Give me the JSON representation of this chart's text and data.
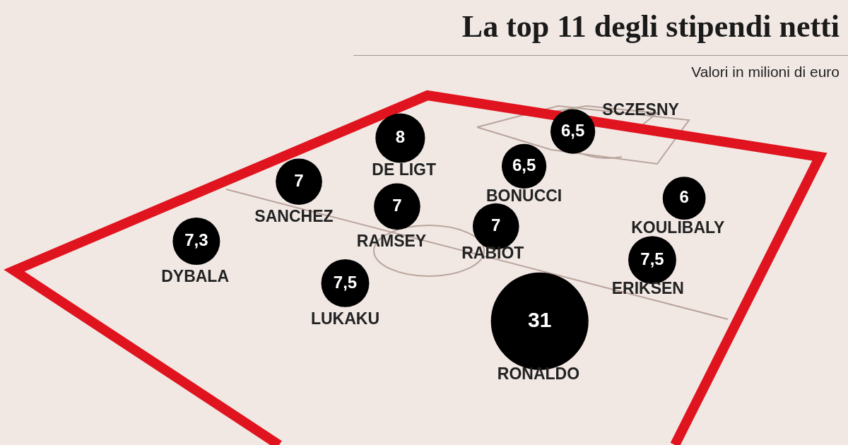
{
  "chart_data": {
    "type": "other",
    "title": "La top 11 degli stipendi netti",
    "subtitle": "Valori in milioni di euro",
    "categories": [
      "SCZESNY",
      "DE LIGT",
      "BONUCCI",
      "SANCHEZ",
      "KOULIBALY",
      "RAMSEY",
      "RABIOT",
      "DYBALA",
      "ERIKSEN",
      "LUKAKU",
      "RONALDO"
    ],
    "values": [
      6.5,
      8,
      6.5,
      7,
      6,
      7,
      7,
      7.3,
      7.5,
      7.5,
      31
    ],
    "value_labels": [
      "6,5",
      "8",
      "6,5",
      "7",
      "6",
      "7",
      "7",
      "7,3",
      "7,5",
      "7,5",
      "31"
    ],
    "color": "#000000"
  }
}
